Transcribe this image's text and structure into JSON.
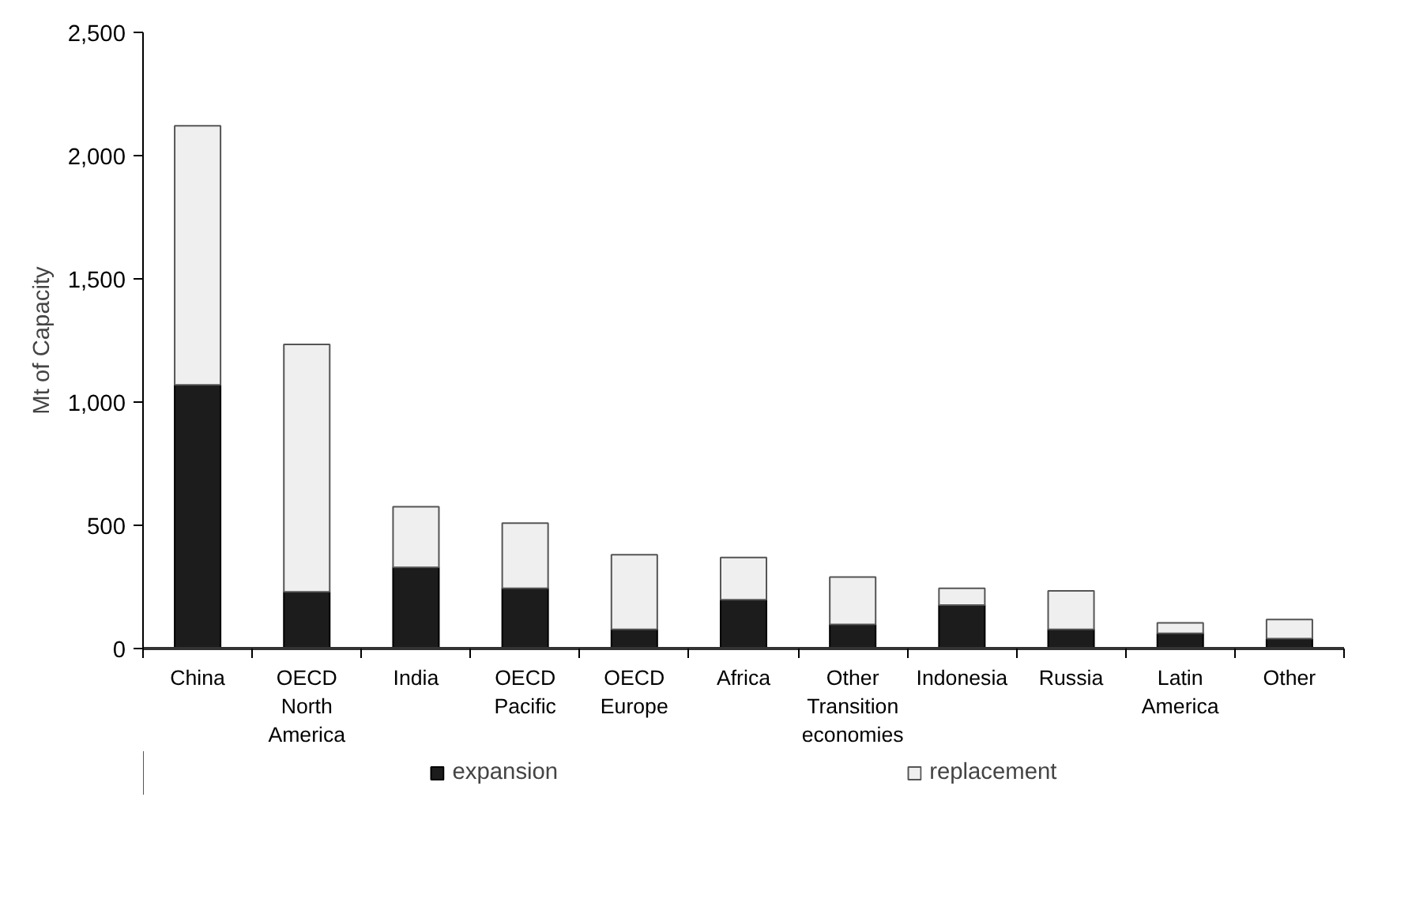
{
  "chart_data": {
    "type": "bar",
    "stacked": true,
    "ylabel": "Mt of Capacity",
    "categories": [
      "China",
      "OECD North America",
      "India",
      "OECD Pacific",
      "OECD Europe",
      "Africa",
      "Other Transition economies",
      "Indonesia",
      "Russia",
      "Latin America",
      "Other"
    ],
    "series": [
      {
        "name": "expansion",
        "color": "#1c1c1c",
        "values": [
          1070,
          230,
          329,
          244,
          78,
          198,
          98,
          176,
          78,
          62,
          40
        ]
      },
      {
        "name": "replacement",
        "color": "#efefef",
        "values": [
          1051,
          1004,
          246,
          265,
          303,
          171,
          192,
          68,
          156,
          42,
          78
        ]
      }
    ],
    "ylim": [
      0,
      2500
    ],
    "yticks": [
      {
        "value": 0,
        "label": "0"
      },
      {
        "value": 500,
        "label": "500"
      },
      {
        "value": 1000,
        "label": "1,000"
      },
      {
        "value": 1500,
        "label": "1,500"
      },
      {
        "value": 2000,
        "label": "2,000"
      },
      {
        "value": 2500,
        "label": "2,500"
      }
    ],
    "grid": false,
    "legend": "bottom"
  }
}
